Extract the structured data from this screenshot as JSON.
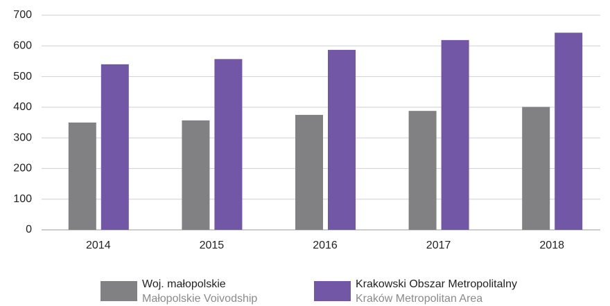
{
  "chart_data": {
    "type": "bar",
    "categories": [
      "2014",
      "2015",
      "2016",
      "2017",
      "2018"
    ],
    "series": [
      {
        "name": "Woj. małopolskie",
        "subtitle": "Małopolskie Voivodship",
        "color": "#818184",
        "values": [
          350,
          357,
          375,
          388,
          401
        ]
      },
      {
        "name": "Krakowski Obszar Metropolitalny",
        "subtitle": "Kraków Metropolitan Area",
        "color": "#7157a5",
        "values": [
          540,
          557,
          587,
          619,
          643
        ]
      }
    ],
    "ylim": [
      0,
      700
    ],
    "yticks": [
      0,
      100,
      200,
      300,
      400,
      500,
      600,
      700
    ],
    "grid": true,
    "legend": "bottom"
  }
}
